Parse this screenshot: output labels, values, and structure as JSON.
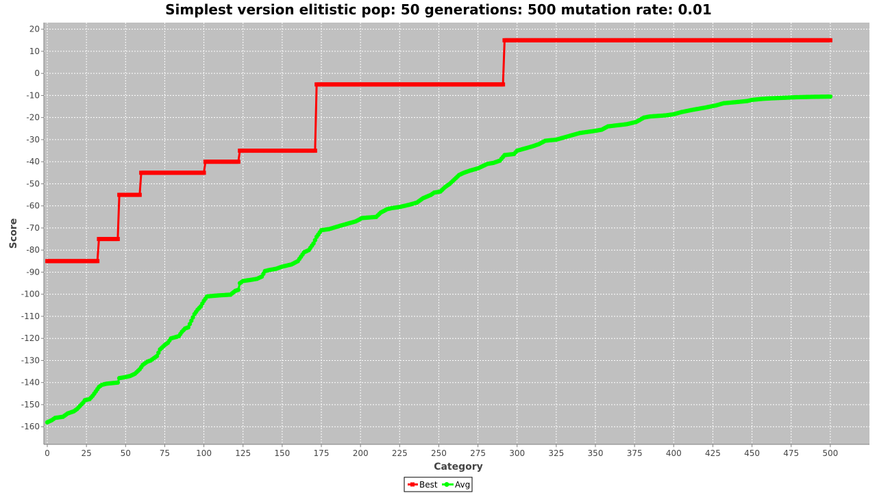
{
  "chart_data": {
    "type": "line",
    "title": "Simplest version elitistic pop: 50 generations: 500 mutation rate: 0.01",
    "xlabel": "Category",
    "ylabel": "Score",
    "xlim": [
      0,
      525
    ],
    "ylim": [
      -168,
      23
    ],
    "x_ticks": [
      0,
      25,
      50,
      75,
      100,
      125,
      150,
      175,
      200,
      225,
      250,
      275,
      300,
      325,
      350,
      375,
      400,
      425,
      450,
      475,
      500
    ],
    "y_ticks": [
      20,
      10,
      0,
      -10,
      -20,
      -30,
      -40,
      -50,
      -60,
      -70,
      -80,
      -90,
      -100,
      -110,
      -120,
      -130,
      -140,
      -150,
      -160
    ],
    "grid": true,
    "legend_position": "bottom-center",
    "series": [
      {
        "name": "Best",
        "color": "#ff0000",
        "step_points": [
          [
            0,
            -85
          ],
          [
            32,
            -85
          ],
          [
            33,
            -75
          ],
          [
            45,
            -75
          ],
          [
            46,
            -55
          ],
          [
            59,
            -55
          ],
          [
            60,
            -45
          ],
          [
            100,
            -45
          ],
          [
            101,
            -40
          ],
          [
            122,
            -40
          ],
          [
            123,
            -35
          ],
          [
            171,
            -35
          ],
          [
            172,
            -5
          ],
          [
            291,
            -5
          ],
          [
            292,
            15
          ],
          [
            500,
            15
          ]
        ]
      },
      {
        "name": "Avg",
        "color": "#00ff00",
        "points": [
          [
            0,
            -158
          ],
          [
            3,
            -157
          ],
          [
            5,
            -156
          ],
          [
            10,
            -155.5
          ],
          [
            13,
            -154
          ],
          [
            17,
            -153
          ],
          [
            19,
            -152
          ],
          [
            21,
            -150.5
          ],
          [
            23,
            -149
          ],
          [
            24,
            -148
          ],
          [
            27,
            -147.5
          ],
          [
            29,
            -146
          ],
          [
            31,
            -144
          ],
          [
            33,
            -142
          ],
          [
            35,
            -141
          ],
          [
            38,
            -140.5
          ],
          [
            45,
            -140
          ],
          [
            46,
            -138
          ],
          [
            50,
            -137.5
          ],
          [
            53,
            -137
          ],
          [
            56,
            -136
          ],
          [
            59,
            -134
          ],
          [
            61,
            -132
          ],
          [
            64,
            -130.5
          ],
          [
            66,
            -130
          ],
          [
            70,
            -128
          ],
          [
            72,
            -125
          ],
          [
            75,
            -123
          ],
          [
            77,
            -122
          ],
          [
            79,
            -120
          ],
          [
            84,
            -119
          ],
          [
            86,
            -117
          ],
          [
            88,
            -115.5
          ],
          [
            90,
            -115
          ],
          [
            92,
            -112
          ],
          [
            94,
            -109
          ],
          [
            96,
            -107
          ],
          [
            98,
            -105.5
          ],
          [
            100,
            -103
          ],
          [
            102,
            -101
          ],
          [
            105,
            -100.8
          ],
          [
            110,
            -100.5
          ],
          [
            117,
            -100.2
          ],
          [
            120,
            -98.5
          ],
          [
            122,
            -98
          ],
          [
            123,
            -95
          ],
          [
            125,
            -94
          ],
          [
            130,
            -93.5
          ],
          [
            134,
            -93
          ],
          [
            137,
            -92
          ],
          [
            139,
            -89.5
          ],
          [
            142,
            -89
          ],
          [
            146,
            -88.5
          ],
          [
            150,
            -87.5
          ],
          [
            156,
            -86.5
          ],
          [
            160,
            -85
          ],
          [
            164,
            -81
          ],
          [
            167,
            -80
          ],
          [
            170,
            -77
          ],
          [
            172,
            -74
          ],
          [
            175,
            -71
          ],
          [
            180,
            -70.5
          ],
          [
            187,
            -69
          ],
          [
            192,
            -68
          ],
          [
            197,
            -67
          ],
          [
            201,
            -65.5
          ],
          [
            210,
            -65
          ],
          [
            213,
            -63
          ],
          [
            217,
            -61.5
          ],
          [
            220,
            -61
          ],
          [
            225,
            -60.5
          ],
          [
            231,
            -59.5
          ],
          [
            236,
            -58.5
          ],
          [
            240,
            -56.5
          ],
          [
            245,
            -55
          ],
          [
            247,
            -54
          ],
          [
            251,
            -53.5
          ],
          [
            254,
            -51.5
          ],
          [
            257,
            -50
          ],
          [
            260,
            -48
          ],
          [
            263,
            -46
          ],
          [
            266,
            -45
          ],
          [
            270,
            -44
          ],
          [
            275,
            -43
          ],
          [
            278,
            -42
          ],
          [
            281,
            -41
          ],
          [
            285,
            -40.5
          ],
          [
            289,
            -39.5
          ],
          [
            292,
            -37
          ],
          [
            298,
            -36.5
          ],
          [
            300,
            -35
          ],
          [
            305,
            -34
          ],
          [
            310,
            -33
          ],
          [
            314,
            -32
          ],
          [
            318,
            -30.5
          ],
          [
            325,
            -30
          ],
          [
            330,
            -29
          ],
          [
            335,
            -28
          ],
          [
            340,
            -27
          ],
          [
            345,
            -26.5
          ],
          [
            350,
            -26
          ],
          [
            354,
            -25.5
          ],
          [
            358,
            -24
          ],
          [
            364,
            -23.5
          ],
          [
            370,
            -23
          ],
          [
            376,
            -22
          ],
          [
            381,
            -20
          ],
          [
            385,
            -19.5
          ],
          [
            395,
            -19
          ],
          [
            400,
            -18.5
          ],
          [
            405,
            -17.5
          ],
          [
            412,
            -16.5
          ],
          [
            420,
            -15.5
          ],
          [
            427,
            -14.5
          ],
          [
            432,
            -13.5
          ],
          [
            440,
            -13
          ],
          [
            447,
            -12.5
          ],
          [
            450,
            -12
          ],
          [
            457,
            -11.5
          ],
          [
            462,
            -11.3
          ],
          [
            472,
            -11
          ],
          [
            478,
            -10.8
          ],
          [
            490,
            -10.6
          ],
          [
            500,
            -10.5
          ]
        ]
      }
    ]
  }
}
